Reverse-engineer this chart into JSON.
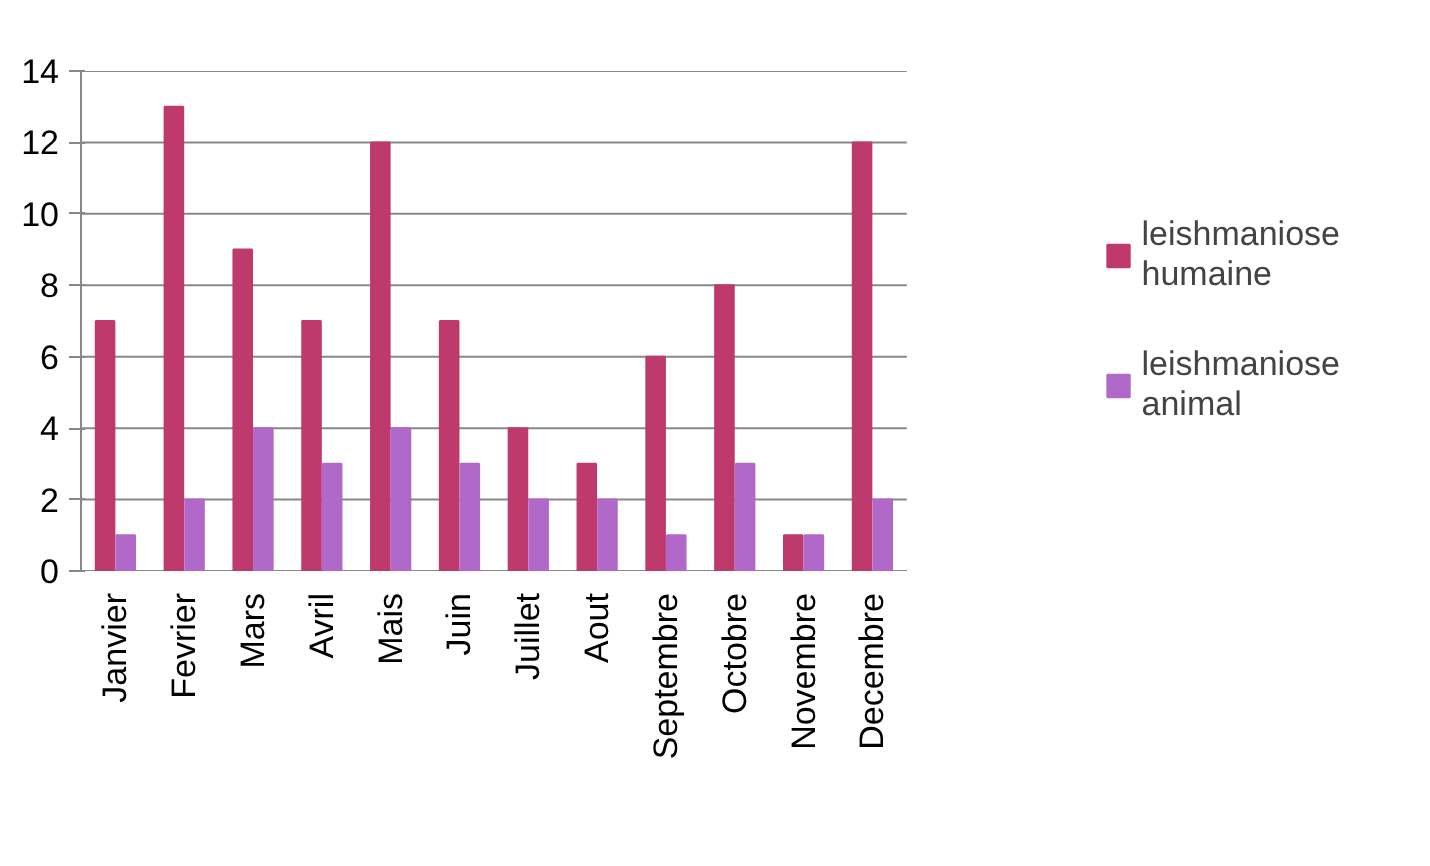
{
  "chart_data": {
    "type": "bar",
    "categories": [
      "Janvier",
      "Fevrier",
      "Mars",
      "Avril",
      "Mais",
      "Juin",
      "Juillet",
      "Aout",
      "Septembre",
      "Octobre",
      "Novembre",
      "Decembre"
    ],
    "series": [
      {
        "name": "leishmaniose humaine",
        "color": "#be3a6c",
        "values": [
          7,
          13,
          9,
          7,
          12,
          7,
          4,
          3,
          6,
          8,
          1,
          12
        ]
      },
      {
        "name": "leishmaniose animal",
        "color": "#b169c9",
        "values": [
          1,
          2,
          4,
          3,
          4,
          3,
          2,
          2,
          1,
          3,
          1,
          2
        ]
      }
    ],
    "ylim": [
      0,
      14
    ],
    "yticks": [
      0,
      2,
      4,
      6,
      8,
      10,
      12,
      14
    ],
    "grid": "y",
    "legend": "right"
  }
}
